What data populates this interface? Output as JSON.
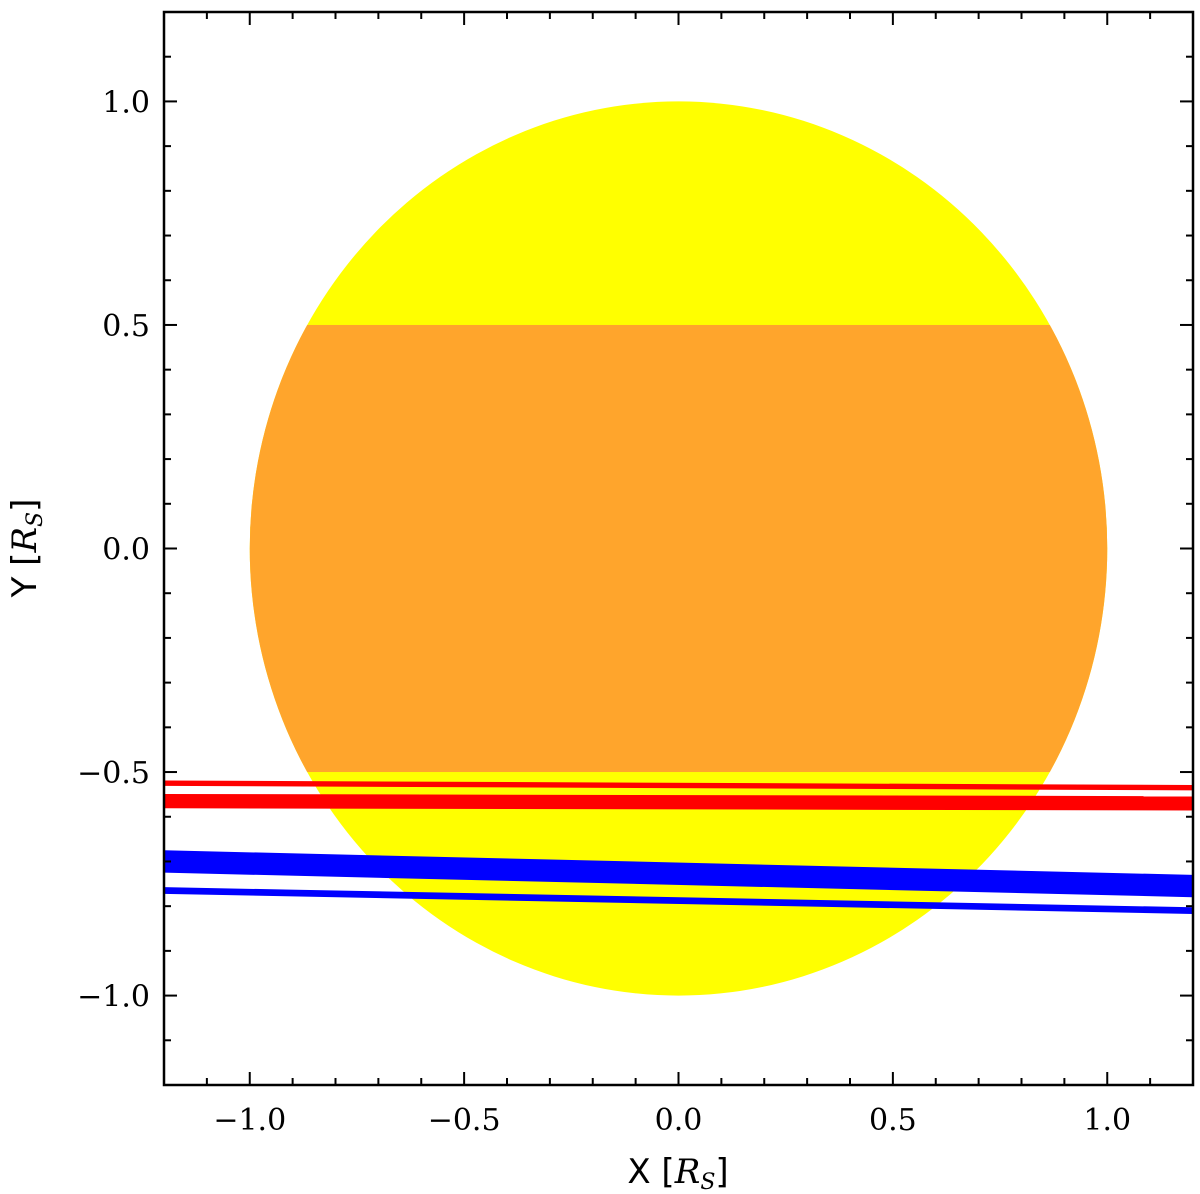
{
  "chart_data": {
    "type": "area",
    "title": "",
    "xlabel": "X [R_S]",
    "ylabel": "Y [R_S]",
    "xlabel_parts": {
      "prefix": "X [",
      "symbol": "R",
      "subscript": "S",
      "suffix": "]"
    },
    "ylabel_parts": {
      "prefix": "Y [",
      "symbol": "R",
      "subscript": "S",
      "suffix": "]"
    },
    "xlim": [
      -1.2,
      1.2
    ],
    "ylim": [
      -1.2,
      1.2
    ],
    "x_ticks": [
      {
        "value": -1.0,
        "label": "−1.0"
      },
      {
        "value": -0.5,
        "label": "−0.5"
      },
      {
        "value": 0.0,
        "label": "0.0"
      },
      {
        "value": 0.5,
        "label": "0.5"
      },
      {
        "value": 1.0,
        "label": "1.0"
      }
    ],
    "y_ticks": [
      {
        "value": 1.0,
        "label": "1.0"
      },
      {
        "value": 0.5,
        "label": "0.5"
      },
      {
        "value": 0.0,
        "label": "0.0"
      },
      {
        "value": -0.5,
        "label": "−0.5"
      },
      {
        "value": -1.0,
        "label": "−1.0"
      }
    ],
    "minor_tick_step": 0.1,
    "grid": false,
    "stellar_disk": {
      "center": [
        0,
        0
      ],
      "radius": 1.0,
      "color": "#ffff00"
    },
    "shaded_band": {
      "y_range": [
        -0.5,
        0.5
      ],
      "color": "#ffa52c"
    },
    "series": [
      {
        "color": "#ff0000",
        "lines": [
          {
            "x": [
              -1.2,
              1.2
            ],
            "y": [
              -0.525,
              -0.535
            ],
            "width": 0.012
          },
          {
            "x": [
              -1.2,
              1.2
            ],
            "y": [
              -0.565,
              -0.57
            ],
            "width": 0.032
          }
        ]
      },
      {
        "color": "#0000ff",
        "lines": [
          {
            "x": [
              -1.2,
              1.2
            ],
            "y": [
              -0.7,
              -0.755
            ],
            "width": 0.05
          },
          {
            "x": [
              -1.2,
              1.2
            ],
            "y": [
              -0.765,
              -0.81
            ],
            "width": 0.015
          }
        ]
      }
    ]
  }
}
